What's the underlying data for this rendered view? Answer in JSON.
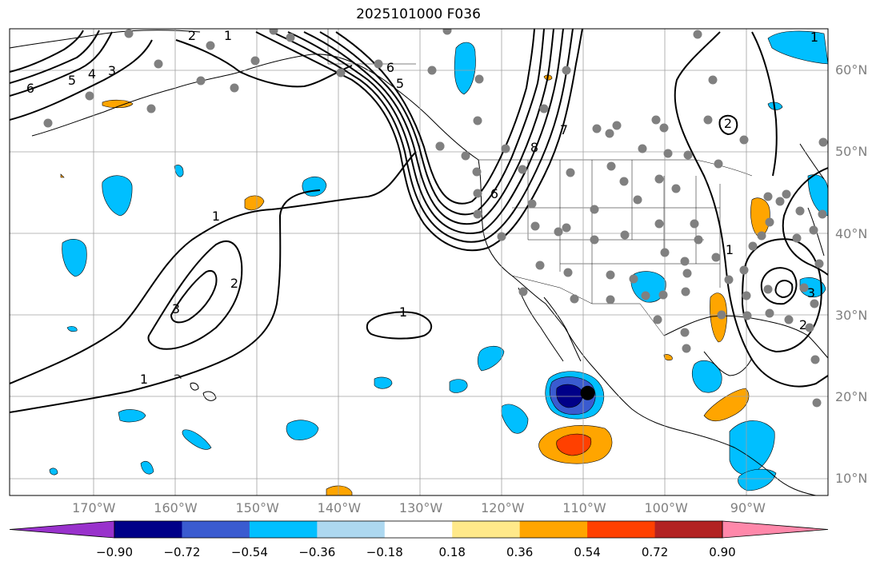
{
  "title": "2025101000 F036",
  "latitude_labels": [
    {
      "lat": 60,
      "label": "60°N"
    },
    {
      "lat": 50,
      "label": "50°N"
    },
    {
      "lat": 40,
      "label": "40°N"
    },
    {
      "lat": 30,
      "label": "30°N"
    },
    {
      "lat": 20,
      "label": "20°N"
    },
    {
      "lat": 10,
      "label": "10°N"
    }
  ],
  "longitude_labels": [
    {
      "lon": -170,
      "label": "170°W"
    },
    {
      "lon": -160,
      "label": "160°W"
    },
    {
      "lon": -150,
      "label": "150°W"
    },
    {
      "lon": -140,
      "label": "140°W"
    },
    {
      "lon": -130,
      "label": "130°W"
    },
    {
      "lon": -120,
      "label": "120°W"
    },
    {
      "lon": -110,
      "label": "110°W"
    },
    {
      "lon": -100,
      "label": "100°W"
    },
    {
      "lon": -90,
      "label": "90°W"
    }
  ],
  "colorbar": {
    "colors": [
      "#000088",
      "#3a5bd0",
      "#00bfff",
      "#add8f0",
      "#ffffff",
      "#ffe98a",
      "#ffa500",
      "#ff4000",
      "#b22222"
    ],
    "under_color": "#9932cc",
    "over_color": "#ff88aa",
    "tick_labels": [
      "−0.90",
      "−0.72",
      "−0.54",
      "−0.36",
      "−0.18",
      "0.18",
      "0.36",
      "0.54",
      "0.72",
      "0.90"
    ]
  },
  "contour_labels": [
    "6",
    "5",
    "4",
    "3",
    "2",
    "1",
    "1",
    "2",
    "3",
    "1",
    "1",
    "6",
    "7",
    "8",
    "5",
    "6",
    "1",
    "2",
    "3",
    "2",
    "1"
  ],
  "storm_marker": {
    "lon": -109.6,
    "lat": 20.5,
    "color": "#000000"
  },
  "station_color": "#808080",
  "contour_color": "#000000"
}
